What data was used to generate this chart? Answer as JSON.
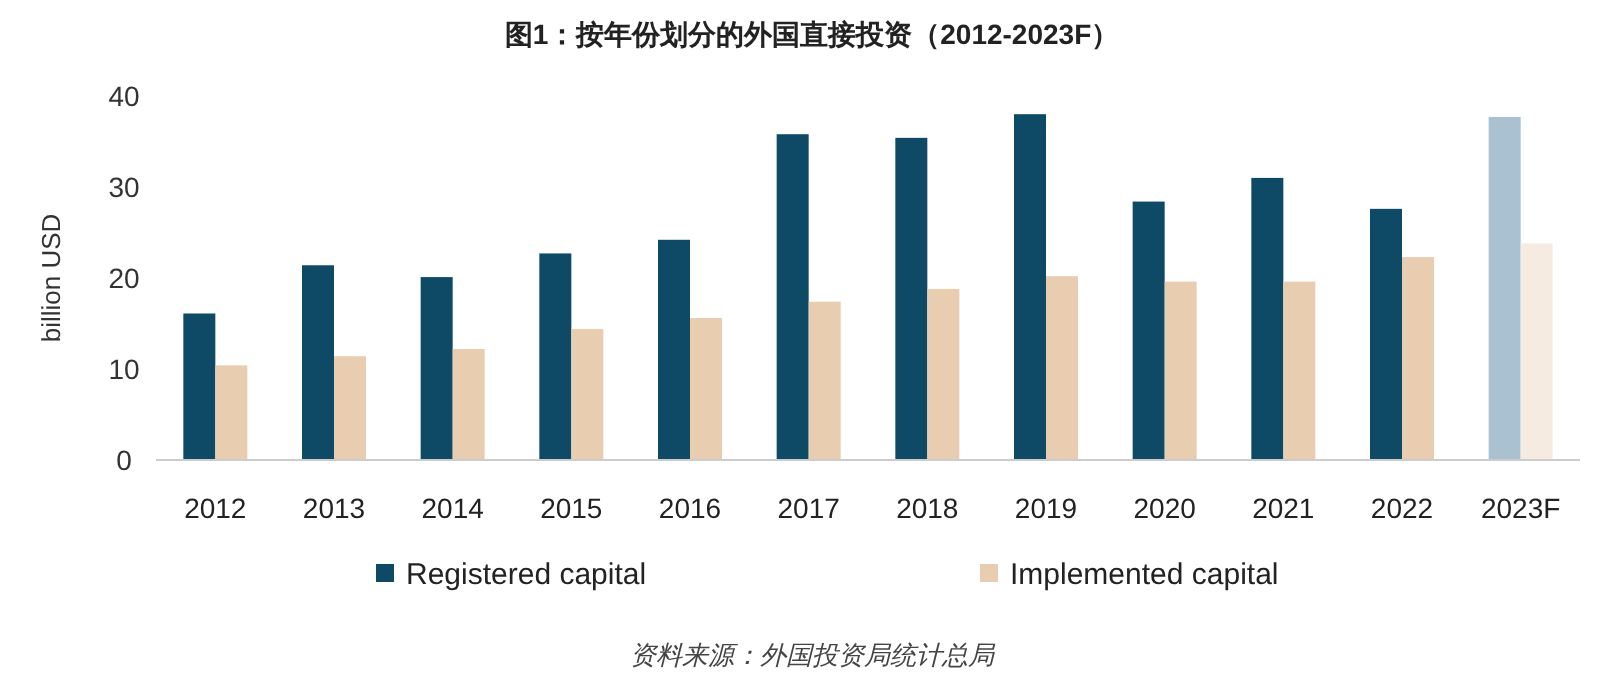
{
  "chart_data": {
    "type": "bar",
    "title": "图1：按年份划分的外国直接投资（2012-2023F）",
    "categories": [
      "2012",
      "2013",
      "2014",
      "2015",
      "2016",
      "2017",
      "2018",
      "2019",
      "2020",
      "2021",
      "2022",
      "2023F"
    ],
    "ylabel": "billion USD",
    "ylim": [
      0,
      40
    ],
    "yticks": [
      0,
      10,
      20,
      30,
      40
    ],
    "legend": "bottom",
    "series": [
      {
        "name": "Registered capital",
        "color": "#0e4a66",
        "colors": [
          "#0e4a66",
          "#0e4a66",
          "#0e4a66",
          "#0e4a66",
          "#0e4a66",
          "#0e4a66",
          "#0e4a66",
          "#0e4a66",
          "#0e4a66",
          "#0e4a66",
          "#0e4a66",
          "#a9c1d0"
        ],
        "values": [
          16.1,
          21.4,
          20.1,
          22.7,
          24.2,
          35.8,
          35.4,
          38.0,
          28.4,
          31.0,
          27.6,
          37.7
        ]
      },
      {
        "name": "Implemented capital",
        "color": "#e8cdb0",
        "colors": [
          "#e8cdb0",
          "#e8cdb0",
          "#e8cdb0",
          "#e8cdb0",
          "#e8cdb0",
          "#e8cdb0",
          "#e8cdb0",
          "#e8cdb0",
          "#e8cdb0",
          "#e8cdb0",
          "#e8cdb0",
          "#f6ebe0"
        ],
        "values": [
          10.4,
          11.4,
          12.2,
          14.4,
          15.6,
          17.4,
          18.8,
          20.2,
          19.6,
          19.6,
          22.3,
          23.8
        ]
      }
    ],
    "annotations": [
      "资料来源：外国投资局统计总局"
    ]
  }
}
